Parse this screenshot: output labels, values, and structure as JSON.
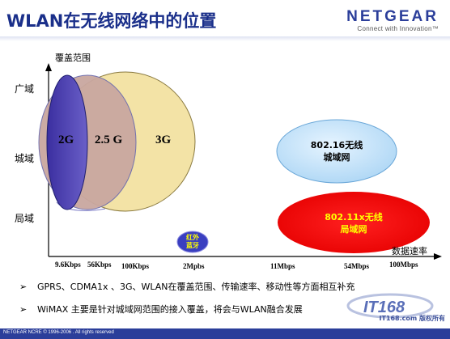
{
  "title": "WLAN在无线网络中的位置",
  "brand": {
    "name": "NETGEAR",
    "tagline": "Connect with Innovation™"
  },
  "axes": {
    "ylabel": "覆盖范围",
    "xlabel": "数据速率",
    "yticks": [
      "广域",
      "城域",
      "局域"
    ],
    "xticks": [
      "9.6Kbps",
      "56Kbps",
      "100Kbps",
      "2Mpbs",
      "11Mbps",
      "54Mbps",
      "100Mbps"
    ]
  },
  "ellipses": [
    {
      "label": "2G",
      "fill": "#4a3fa8"
    },
    {
      "label": "2.5 G",
      "fill": "#c49a9a"
    },
    {
      "label": "3G",
      "fill": "#f3e3a6"
    },
    {
      "label_line1": "802.16无线",
      "label_line2": "城域网",
      "fill": "#bfe0f5",
      "text_color": "#000000"
    },
    {
      "label_line1": "802.11x无线",
      "label_line2": "局域网",
      "fill": "#ff0a0a",
      "text_color": "#ffff00"
    },
    {
      "label_line1": "红外",
      "label_line2": "蓝牙",
      "fill": "#3a3fc0",
      "text_color": "#ffff00"
    }
  ],
  "bullets": [
    "GPRS、CDMA1x 、3G、WLAN在覆盖范围、传输速率、移动性等方面相互补充",
    "WiMAX 主要是针对城域网范围的接入覆盖，将会与WLAN融合发展"
  ],
  "footer": "NETGEAR NCRE © 1996-2006 . All rights reserved",
  "watermark": {
    "logo": "IT168",
    "site": "IT168.com 版权所有"
  }
}
